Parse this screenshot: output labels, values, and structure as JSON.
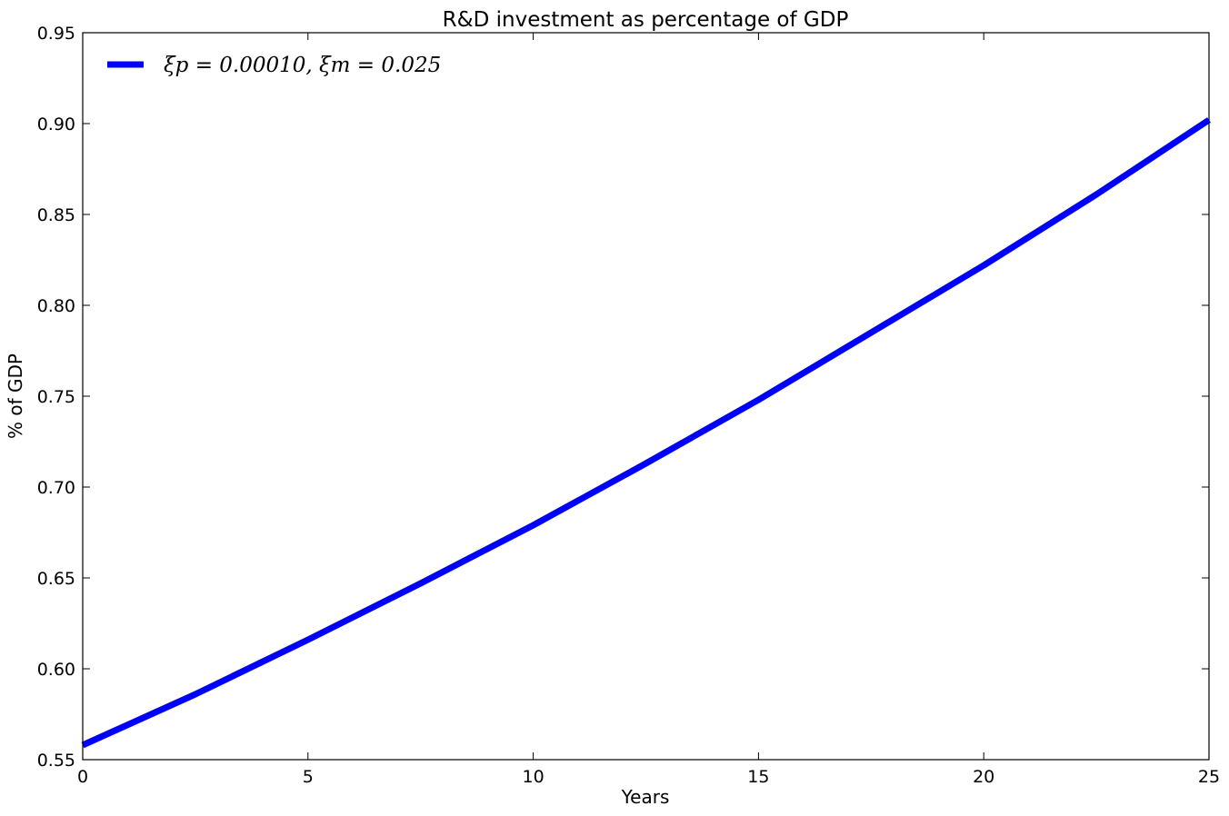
{
  "chart_data": {
    "type": "line",
    "title": "R&D investment as percentage of  GDP",
    "xlabel": "Years",
    "ylabel": "% of GDP",
    "xlim": [
      0,
      25
    ],
    "ylim": [
      0.55,
      0.95
    ],
    "xticks": [
      0,
      5,
      10,
      15,
      20,
      25
    ],
    "xtick_labels": [
      "0",
      "5",
      "10",
      "15",
      "20",
      "25"
    ],
    "yticks": [
      0.55,
      0.6,
      0.65,
      0.7,
      0.75,
      0.8,
      0.85,
      0.9,
      0.95
    ],
    "ytick_labels": [
      "0.55",
      "0.60",
      "0.65",
      "0.70",
      "0.75",
      "0.80",
      "0.85",
      "0.90",
      "0.95"
    ],
    "grid": false,
    "legend_position": "top-left",
    "series": [
      {
        "name": "ξp = 0.00010, ξm = 0.025",
        "color": "#0000ff",
        "x": [
          0,
          2.5,
          5,
          7.5,
          10,
          12.5,
          15,
          17.5,
          20,
          22.5,
          25
        ],
        "y": [
          0.558,
          0.586,
          0.616,
          0.647,
          0.679,
          0.713,
          0.748,
          0.785,
          0.822,
          0.861,
          0.902
        ]
      }
    ]
  }
}
